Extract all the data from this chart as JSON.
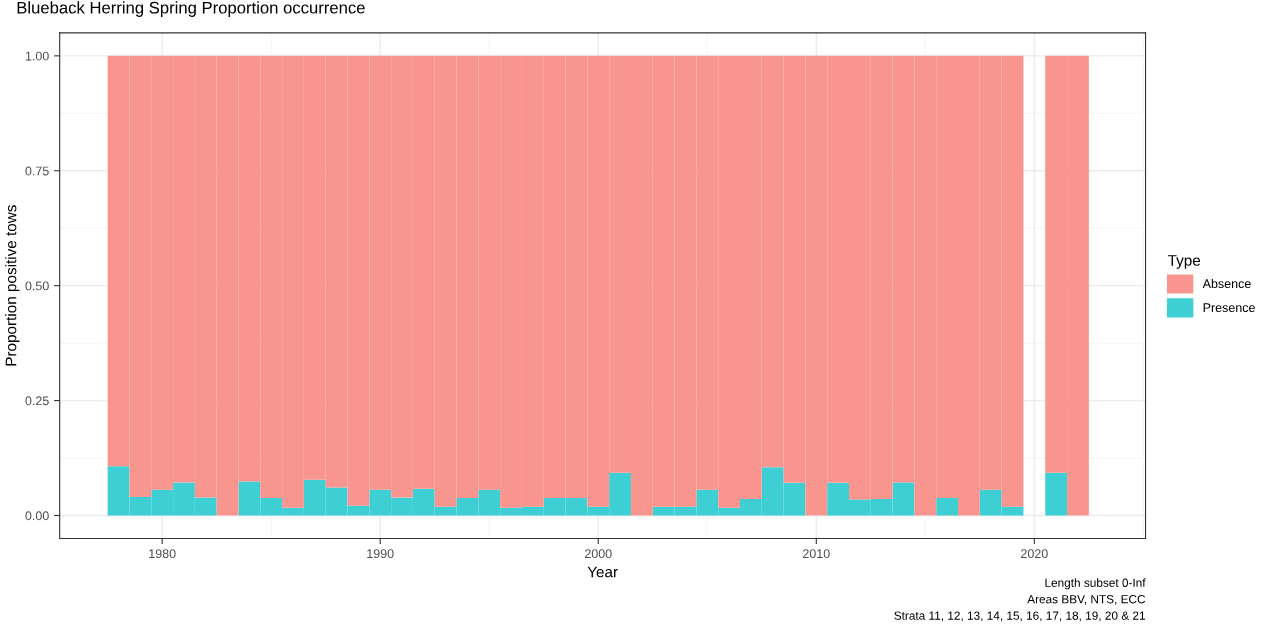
{
  "chart_data": {
    "type": "bar",
    "stacked": true,
    "title": "Blueback Herring Spring Proportion occurrence",
    "xlabel": "Year",
    "ylabel": "Proportion positive tows",
    "legend_title": "Type",
    "legend": "right",
    "x": [
      1978,
      1979,
      1980,
      1981,
      1982,
      1983,
      1984,
      1985,
      1986,
      1987,
      1988,
      1989,
      1990,
      1991,
      1992,
      1993,
      1994,
      1995,
      1996,
      1997,
      1998,
      1999,
      2000,
      2001,
      2002,
      2003,
      2004,
      2005,
      2006,
      2007,
      2008,
      2009,
      2010,
      2011,
      2012,
      2013,
      2014,
      2015,
      2016,
      2017,
      2018,
      2019,
      2020,
      2021,
      2022
    ],
    "series": [
      {
        "name": "Presence",
        "color": "#3ecfd4",
        "values": [
          0.107,
          0.04,
          0.056,
          0.072,
          0.039,
          0,
          0.074,
          0.038,
          0.017,
          0.078,
          0.061,
          0.021,
          0.056,
          0.039,
          0.058,
          0.019,
          0.038,
          0.056,
          0.017,
          0.019,
          0.038,
          0.038,
          0.019,
          0.093,
          0,
          0.019,
          0.019,
          0.056,
          0.017,
          0.036,
          0.105,
          0.071,
          0,
          0.071,
          0.035,
          0.036,
          0.072,
          0,
          0.038,
          0,
          0.056,
          0.019,
          null,
          0.093,
          0
        ]
      },
      {
        "name": "Absence",
        "color": "#f9958f",
        "values": [
          0.893,
          0.96,
          0.944,
          0.928,
          0.961,
          1,
          0.926,
          0.962,
          0.983,
          0.922,
          0.939,
          0.979,
          0.944,
          0.961,
          0.942,
          0.981,
          0.962,
          0.944,
          0.983,
          0.981,
          0.962,
          0.962,
          0.981,
          0.907,
          1,
          0.981,
          0.981,
          0.944,
          0.983,
          0.964,
          0.895,
          0.929,
          1,
          0.929,
          0.965,
          0.964,
          0.928,
          1,
          0.962,
          1,
          0.944,
          0.981,
          null,
          0.907,
          1
        ]
      }
    ],
    "xlim": [
      1975.3,
      2025.1
    ],
    "xticks": [
      1980,
      1990,
      2000,
      2010,
      2020
    ],
    "ylim": [
      -0.05,
      1.05
    ],
    "yticks": [
      {
        "value": 0,
        "label": "0.00"
      },
      {
        "value": 0.25,
        "label": "0.25"
      },
      {
        "value": 0.5,
        "label": "0.50"
      },
      {
        "value": 0.75,
        "label": "0.75"
      },
      {
        "value": 1,
        "label": "1.00"
      }
    ],
    "grid": true,
    "annotations": [
      "Length subset 0-Inf",
      "Areas BBV, NTS, ECC",
      "Strata 11, 12, 13, 14, 15, 16, 17, 18, 19, 20 & 21"
    ]
  }
}
